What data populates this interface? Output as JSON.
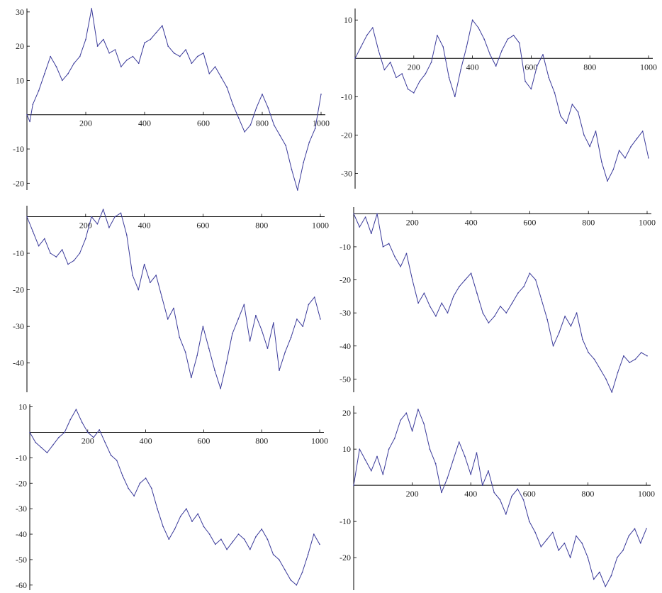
{
  "style": {
    "line_color": "#3a3a9a",
    "axis_color": "#000000",
    "background": "#ffffff"
  },
  "chart_data": [
    {
      "type": "line",
      "xlim": [
        0,
        1000
      ],
      "ylim": [
        -22,
        31
      ],
      "x_ticks": [
        "200",
        "400",
        "600",
        "800",
        "1000"
      ],
      "y_ticks": [
        "30",
        "20",
        "10",
        "-10",
        "-20"
      ],
      "series": [
        {
          "x": [
            0,
            10,
            20,
            40,
            60,
            80,
            100,
            120,
            140,
            160,
            180,
            200,
            220,
            240,
            260,
            280,
            300,
            320,
            340,
            360,
            380,
            400,
            420,
            440,
            460,
            480,
            500,
            520,
            540,
            560,
            580,
            600,
            620,
            640,
            660,
            680,
            700,
            720,
            740,
            760,
            780,
            800,
            820,
            840,
            860,
            880,
            900,
            920,
            940,
            960,
            980,
            1000
          ],
          "values": [
            0,
            -2,
            3,
            7,
            12,
            17,
            14,
            10,
            12,
            15,
            17,
            22,
            31,
            20,
            22,
            18,
            19,
            14,
            16,
            17,
            15,
            21,
            22,
            24,
            26,
            20,
            18,
            17,
            19,
            15,
            17,
            18,
            12,
            14,
            11,
            8,
            3,
            -1,
            -5,
            -3,
            2,
            6,
            2,
            -3,
            -6,
            -9,
            -16,
            -22,
            -14,
            -8,
            -4,
            6
          ]
        }
      ]
    },
    {
      "type": "line",
      "xlim": [
        0,
        1000
      ],
      "ylim": [
        -34,
        13
      ],
      "x_ticks": [
        "200",
        "400",
        "600",
        "800",
        "1000"
      ],
      "y_ticks": [
        "10",
        "-10",
        "-20",
        "-30"
      ],
      "series": [
        {
          "x": [
            0,
            20,
            40,
            60,
            80,
            100,
            120,
            140,
            160,
            180,
            200,
            220,
            240,
            260,
            280,
            300,
            320,
            340,
            360,
            380,
            400,
            420,
            440,
            460,
            480,
            500,
            520,
            540,
            560,
            580,
            600,
            620,
            640,
            660,
            680,
            700,
            720,
            740,
            760,
            780,
            800,
            820,
            840,
            860,
            880,
            900,
            920,
            940,
            960,
            980,
            1000
          ],
          "values": [
            0,
            3,
            6,
            8,
            2,
            -3,
            -1,
            -5,
            -4,
            -8,
            -9,
            -6,
            -4,
            -1,
            6,
            3,
            -5,
            -10,
            -3,
            3,
            10,
            8,
            5,
            1,
            -2,
            2,
            5,
            6,
            4,
            -6,
            -8,
            -2,
            1,
            -5,
            -9,
            -15,
            -17,
            -12,
            -14,
            -20,
            -23,
            -19,
            -27,
            -32,
            -29,
            -24,
            -26,
            -23,
            -21,
            -19,
            -26
          ]
        }
      ]
    },
    {
      "type": "line",
      "xlim": [
        0,
        1000
      ],
      "ylim": [
        -48,
        3
      ],
      "x_ticks": [
        "200",
        "400",
        "600",
        "800",
        "1000"
      ],
      "y_ticks": [
        "-10",
        "-20",
        "-30",
        "-40"
      ],
      "series": [
        {
          "x": [
            0,
            20,
            40,
            60,
            80,
            100,
            120,
            140,
            160,
            180,
            200,
            220,
            240,
            260,
            280,
            300,
            320,
            340,
            360,
            380,
            400,
            420,
            440,
            460,
            480,
            500,
            520,
            540,
            560,
            580,
            600,
            620,
            640,
            660,
            680,
            700,
            720,
            740,
            760,
            780,
            800,
            820,
            840,
            860,
            880,
            900,
            920,
            940,
            960,
            980,
            1000
          ],
          "values": [
            0,
            -4,
            -8,
            -6,
            -10,
            -11,
            -9,
            -13,
            -12,
            -10,
            -6,
            0,
            -2,
            2,
            -3,
            0,
            1,
            -5,
            -16,
            -20,
            -13,
            -18,
            -16,
            -22,
            -28,
            -25,
            -33,
            -37,
            -44,
            -38,
            -30,
            -36,
            -42,
            -47,
            -40,
            -32,
            -28,
            -24,
            -34,
            -27,
            -31,
            -36,
            -29,
            -42,
            -37,
            -33,
            -28,
            -30,
            -24,
            -22,
            -28
          ]
        }
      ]
    },
    {
      "type": "line",
      "xlim": [
        0,
        1000
      ],
      "ylim": [
        -54,
        2
      ],
      "x_ticks": [
        "200",
        "400",
        "600",
        "800",
        "1000"
      ],
      "y_ticks": [
        "-10",
        "-20",
        "-30",
        "-40",
        "-50"
      ],
      "series": [
        {
          "x": [
            0,
            20,
            40,
            60,
            80,
            100,
            120,
            140,
            160,
            180,
            200,
            220,
            240,
            260,
            280,
            300,
            320,
            340,
            360,
            380,
            400,
            420,
            440,
            460,
            480,
            500,
            520,
            540,
            560,
            580,
            600,
            620,
            640,
            660,
            680,
            700,
            720,
            740,
            760,
            780,
            800,
            820,
            840,
            860,
            880,
            900,
            920,
            940,
            960,
            980,
            1000
          ],
          "values": [
            0,
            -4,
            -1,
            -6,
            0,
            -10,
            -9,
            -13,
            -16,
            -12,
            -20,
            -27,
            -24,
            -28,
            -31,
            -27,
            -30,
            -25,
            -22,
            -20,
            -18,
            -24,
            -30,
            -33,
            -31,
            -28,
            -30,
            -27,
            -24,
            -22,
            -18,
            -20,
            -26,
            -32,
            -40,
            -36,
            -31,
            -34,
            -30,
            -38,
            -42,
            -44,
            -47,
            -50,
            -54,
            -48,
            -43,
            -45,
            -44,
            -42,
            -43
          ]
        }
      ]
    },
    {
      "type": "line",
      "xlim": [
        0,
        1000
      ],
      "ylim": [
        -62,
        11
      ],
      "x_ticks": [
        "200",
        "400",
        "600",
        "800",
        "1000"
      ],
      "y_ticks": [
        "10",
        "-10",
        "-20",
        "-30",
        "-40",
        "-50",
        "-60"
      ],
      "series": [
        {
          "x": [
            0,
            20,
            40,
            60,
            80,
            100,
            120,
            140,
            160,
            180,
            200,
            220,
            240,
            260,
            280,
            300,
            320,
            340,
            360,
            380,
            400,
            420,
            440,
            460,
            480,
            500,
            520,
            540,
            560,
            580,
            600,
            620,
            640,
            660,
            680,
            700,
            720,
            740,
            760,
            780,
            800,
            820,
            840,
            860,
            880,
            900,
            920,
            940,
            960,
            980,
            1000
          ],
          "values": [
            0,
            -4,
            -6,
            -8,
            -5,
            -2,
            0,
            5,
            9,
            4,
            0,
            -2,
            1,
            -4,
            -9,
            -11,
            -17,
            -22,
            -25,
            -20,
            -18,
            -22,
            -30,
            -37,
            -42,
            -38,
            -33,
            -30,
            -35,
            -32,
            -37,
            -40,
            -44,
            -42,
            -46,
            -43,
            -40,
            -42,
            -46,
            -41,
            -38,
            -42,
            -48,
            -50,
            -54,
            -58,
            -60,
            -55,
            -48,
            -40,
            -44
          ]
        }
      ]
    },
    {
      "type": "line",
      "xlim": [
        0,
        1000
      ],
      "ylim": [
        -29,
        22
      ],
      "x_ticks": [
        "200",
        "400",
        "600",
        "800",
        "1000"
      ],
      "y_ticks": [
        "20",
        "10",
        "-10",
        "-20"
      ],
      "series": [
        {
          "x": [
            0,
            20,
            40,
            60,
            80,
            100,
            120,
            140,
            160,
            180,
            200,
            220,
            240,
            260,
            280,
            300,
            320,
            340,
            360,
            380,
            400,
            420,
            440,
            460,
            480,
            500,
            520,
            540,
            560,
            580,
            600,
            620,
            640,
            660,
            680,
            700,
            720,
            740,
            760,
            780,
            800,
            820,
            840,
            860,
            880,
            900,
            920,
            940,
            960,
            980,
            1000
          ],
          "values": [
            0,
            10,
            7,
            4,
            8,
            3,
            10,
            13,
            18,
            20,
            15,
            21,
            17,
            10,
            6,
            -2,
            2,
            7,
            12,
            8,
            3,
            9,
            0,
            4,
            -2,
            -4,
            -8,
            -3,
            -1,
            -4,
            -10,
            -13,
            -17,
            -15,
            -13,
            -18,
            -16,
            -20,
            -14,
            -16,
            -20,
            -26,
            -24,
            -28,
            -25,
            -20,
            -18,
            -14,
            -12,
            -16,
            -12
          ]
        }
      ]
    }
  ]
}
